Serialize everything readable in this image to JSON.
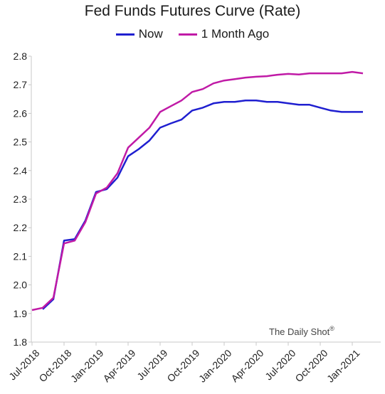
{
  "chart_data": {
    "type": "line",
    "title": "Fed Funds Futures Curve (Rate)",
    "xlabel": "",
    "ylabel": "",
    "ylim": [
      1.8,
      2.8
    ],
    "yticks": [
      "1.8",
      "1.9",
      "2.0",
      "2.1",
      "2.2",
      "2.3",
      "2.4",
      "2.5",
      "2.6",
      "2.7",
      "2.8"
    ],
    "xticks": [
      "Jul-2018",
      "Oct-2018",
      "Jan-2019",
      "Apr-2019",
      "Jul-2019",
      "Oct-2019",
      "Jan-2020",
      "Apr-2020",
      "Jul-2020",
      "Oct-2020",
      "Jan-2021"
    ],
    "x": [
      "2018-07",
      "2018-08",
      "2018-09",
      "2018-10",
      "2018-11",
      "2018-12",
      "2019-01",
      "2019-02",
      "2019-03",
      "2019-04",
      "2019-05",
      "2019-06",
      "2019-07",
      "2019-08",
      "2019-09",
      "2019-10",
      "2019-11",
      "2019-12",
      "2020-01",
      "2020-02",
      "2020-03",
      "2020-04",
      "2020-05",
      "2020-06",
      "2020-07",
      "2020-08",
      "2020-09",
      "2020-10",
      "2020-11",
      "2020-12",
      "2021-01",
      "2021-02"
    ],
    "series": [
      {
        "name": "Now",
        "color": "#1f1fd0",
        "values": [
          null,
          1.915,
          1.95,
          2.155,
          2.16,
          2.225,
          2.325,
          2.335,
          2.375,
          2.45,
          2.475,
          2.505,
          2.55,
          2.565,
          2.578,
          2.61,
          2.62,
          2.635,
          2.64,
          2.64,
          2.645,
          2.645,
          2.64,
          2.64,
          2.635,
          2.63,
          2.63,
          2.62,
          2.61,
          2.605,
          2.605,
          2.605
        ]
      },
      {
        "name": "1 Month Ago",
        "color": "#c01aa6",
        "values": [
          1.912,
          1.92,
          1.955,
          2.145,
          2.155,
          2.22,
          2.32,
          2.34,
          2.39,
          2.48,
          2.515,
          2.55,
          2.605,
          2.625,
          2.645,
          2.675,
          2.685,
          2.705,
          2.715,
          2.72,
          2.725,
          2.728,
          2.73,
          2.735,
          2.738,
          2.736,
          2.74,
          2.74,
          2.74,
          2.74,
          2.745,
          2.74
        ]
      }
    ],
    "grid": false,
    "legend": "top-center",
    "credit": "The Daily Shot",
    "credit_mark": "®"
  }
}
